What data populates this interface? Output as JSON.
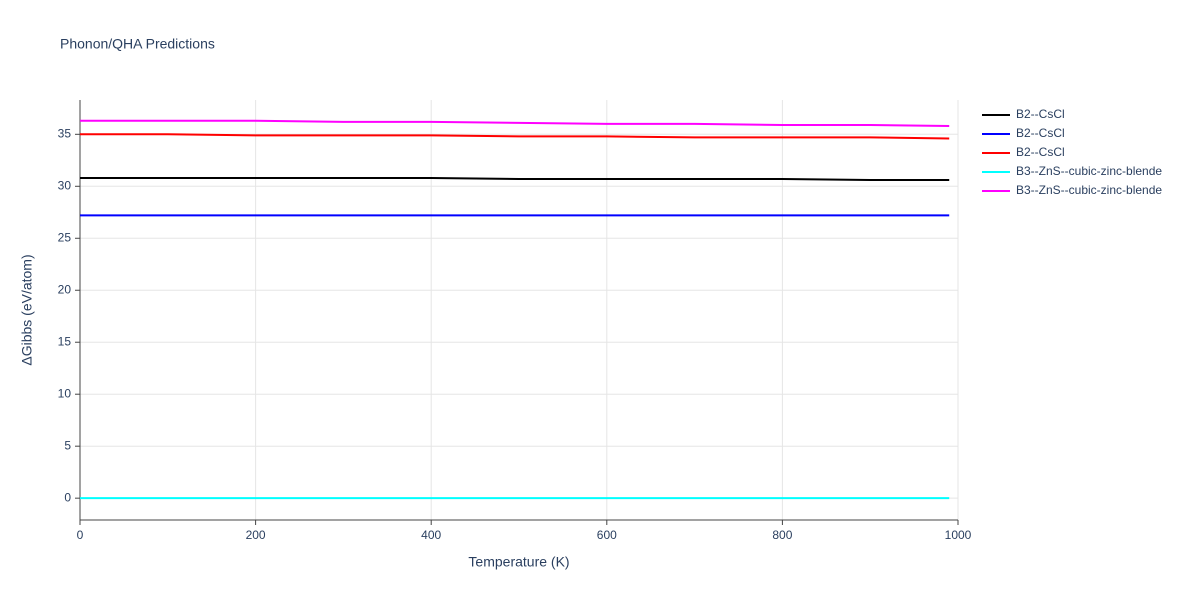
{
  "chart_data": {
    "type": "line",
    "title": "Phonon/QHA Predictions",
    "x_label": "Temperature (K)",
    "y_label": "ΔGibbs (eV/atom)",
    "x": [
      0,
      100,
      200,
      300,
      400,
      500,
      600,
      700,
      800,
      900,
      990
    ],
    "series": [
      {
        "name": "B2--CsCl",
        "color": "#000000",
        "values": [
          30.8,
          30.8,
          30.8,
          30.8,
          30.8,
          30.7,
          30.7,
          30.7,
          30.7,
          30.6,
          30.6
        ]
      },
      {
        "name": "B2--CsCl",
        "color": "#0000ff",
        "values": [
          27.2,
          27.2,
          27.2,
          27.2,
          27.2,
          27.2,
          27.2,
          27.2,
          27.2,
          27.2,
          27.2
        ]
      },
      {
        "name": "B2--CsCl",
        "color": "#ff0000",
        "values": [
          35.0,
          35.0,
          34.9,
          34.9,
          34.9,
          34.8,
          34.8,
          34.7,
          34.7,
          34.7,
          34.6
        ]
      },
      {
        "name": "B3--ZnS--cubic-zinc-blende",
        "color": "#00ffff",
        "values": [
          0,
          0,
          0,
          0,
          0,
          0,
          0,
          0,
          0,
          0,
          0
        ]
      },
      {
        "name": "B3--ZnS--cubic-zinc-blende",
        "color": "#ff00ff",
        "values": [
          36.3,
          36.3,
          36.3,
          36.2,
          36.2,
          36.1,
          36.0,
          36.0,
          35.9,
          35.9,
          35.8
        ]
      }
    ],
    "xlim": [
      0,
      1000
    ],
    "xticks": [
      0,
      200,
      400,
      600,
      800,
      1000
    ],
    "ylim": [
      -2.1,
      38.3
    ],
    "yticks": [
      0,
      5,
      10,
      15,
      20,
      25,
      30,
      35
    ],
    "grid": true,
    "legend": "right"
  }
}
